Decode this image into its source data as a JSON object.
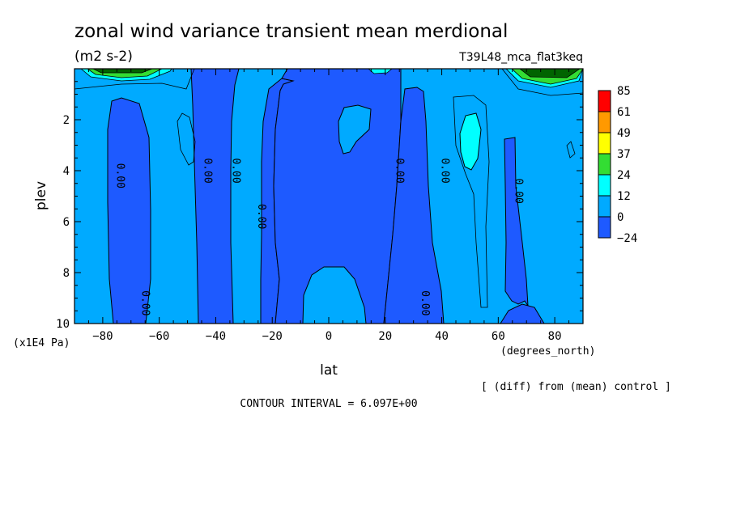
{
  "chart_data": {
    "type": "contour",
    "title": "zonal wind variance transient mean merdional",
    "units": "(m2 s-2)",
    "experiment": "T39L48_mca_flat3keq",
    "xlabel": "lat",
    "x_units": "(degrees_north)",
    "ylabel": "plev",
    "y_units": "(x1E4 Pa)",
    "xlim": [
      -90,
      90
    ],
    "ylim": [
      10,
      0
    ],
    "x_ticks": [
      "-80",
      "-60",
      "-40",
      "-20",
      "0",
      "20",
      "40",
      "60",
      "80"
    ],
    "y_ticks": [
      "2",
      "4",
      "6",
      "8",
      "10"
    ],
    "legend": {
      "position": "right",
      "levels": [
        "85",
        "61",
        "49",
        "37",
        "24",
        "12",
        "0",
        "-24"
      ],
      "colors": [
        "#ff0000",
        "#ff9900",
        "#ffff00",
        "#33dd33",
        "#00ffff",
        "#00aaff",
        "#1e5aff"
      ]
    },
    "contour_labels": [
      {
        "text": "0.00",
        "lat": -74,
        "plev": 4.2
      },
      {
        "text": "0.00",
        "lat": -65,
        "plev": 9.2
      },
      {
        "text": "0.00",
        "lat": -43,
        "plev": 4.0
      },
      {
        "text": "0.00",
        "lat": -33,
        "plev": 4.0
      },
      {
        "text": "0.00",
        "lat": -24,
        "plev": 5.8
      },
      {
        "text": "0.00",
        "lat": 25,
        "plev": 4.0
      },
      {
        "text": "0.00",
        "lat": 34,
        "plev": 9.2
      },
      {
        "text": "0.00",
        "lat": 41,
        "plev": 4.0
      },
      {
        "text": "0.00",
        "lat": 67,
        "plev": 4.8
      }
    ],
    "footnote": "[ (diff) from (mean) control ]",
    "contour_interval": "CONTOUR INTERVAL = 6.097E+00"
  }
}
